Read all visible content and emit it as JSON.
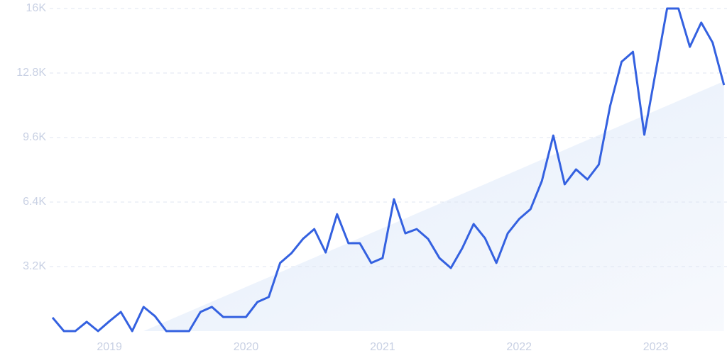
{
  "chart_data": {
    "type": "line",
    "categories": [
      null,
      null,
      null,
      null,
      null,
      "2019",
      null,
      null,
      null,
      null,
      null,
      null,
      null,
      null,
      null,
      null,
      null,
      "2020",
      null,
      null,
      null,
      null,
      null,
      null,
      null,
      null,
      null,
      null,
      null,
      "2021",
      null,
      null,
      null,
      null,
      null,
      null,
      null,
      null,
      null,
      null,
      null,
      "2022",
      null,
      null,
      null,
      null,
      null,
      null,
      null,
      null,
      null,
      null,
      null,
      "2023",
      null,
      null,
      null,
      null,
      null,
      null
    ],
    "series": [
      {
        "color": "#3461e0",
        "values": [
          670,
          0,
          0,
          460,
          0,
          490,
          950,
          0,
          1200,
          740,
          0,
          0,
          0,
          950,
          1200,
          700,
          700,
          700,
          1440,
          1690,
          3380,
          3870,
          4570,
          5060,
          3900,
          5800,
          4360,
          4360,
          3380,
          3620,
          6540,
          4850,
          5060,
          4570,
          3620,
          3130,
          4110,
          5310,
          4610,
          3380,
          4850,
          5560,
          6050,
          7450,
          9700,
          7280,
          8020,
          7520,
          8260,
          11180,
          13360,
          13850,
          9740,
          12870,
          16000,
          16000,
          14100,
          15300,
          14310,
          12200
        ]
      }
    ],
    "trend": {
      "values": [
        null,
        null,
        null,
        null,
        null,
        null,
        null,
        null,
        0,
        243,
        486,
        729,
        972,
        1215,
        1458,
        1701,
        1944,
        2187,
        2430,
        2673,
        2916,
        3159,
        3402,
        3645,
        3888,
        4131,
        4374,
        4617,
        4860,
        5103,
        5346,
        5589,
        5832,
        6075,
        6318,
        6561,
        6804,
        7047,
        7290,
        7533,
        7776,
        8019,
        8262,
        8505,
        8748,
        8991,
        9234,
        9477,
        9720,
        9963,
        10206,
        10449,
        10692,
        10935,
        11178,
        11421,
        11664,
        11907,
        12150,
        12393
      ]
    },
    "ylim": [
      0,
      16000
    ],
    "yticks": [
      {
        "value": 3200,
        "label": "3.2K"
      },
      {
        "value": 6400,
        "label": "6.4K"
      },
      {
        "value": 9600,
        "label": "9.6K"
      },
      {
        "value": 12800,
        "label": "12.8K"
      },
      {
        "value": 16000,
        "label": "16K"
      }
    ],
    "grid": true
  }
}
